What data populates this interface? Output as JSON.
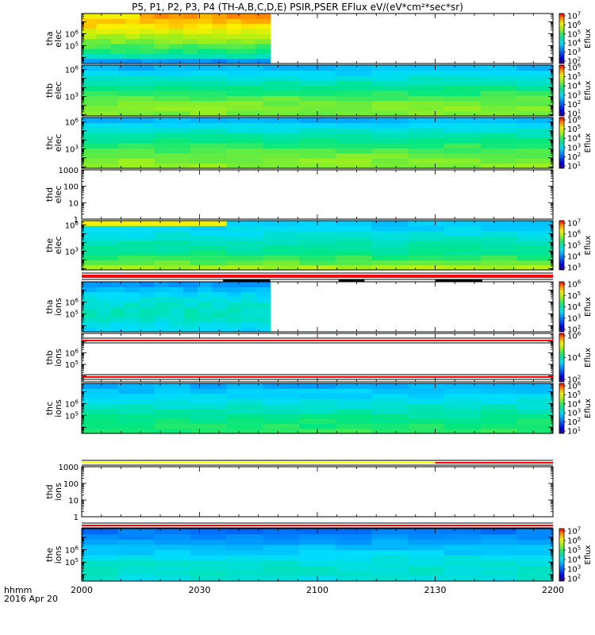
{
  "title": "P5, P1, P2, P3, P4 (TH-A,B,C,D,E) PSIR,PSER EFlux eV/(eV*cm²*sec*sr)",
  "footer": {
    "line1": "hhmm",
    "line2": "2016 Apr 20"
  },
  "colorbar_label": "Eflux",
  "chart_data": {
    "type": "heatmap",
    "title": "P5, P1, P2, P3, P4 (TH-A,B,C,D,E) PSIR,PSER EFlux eV/(eV*cm²*sec*sr)",
    "x_ticks": [
      "2000",
      "2030",
      "2100",
      "2130",
      "2200"
    ],
    "x_range": [
      "20:00",
      "22:00"
    ],
    "xlabel": "hhmm",
    "date": "2016 Apr 20",
    "panels": [
      {
        "label": [
          "tha",
          "elec"
        ],
        "yscale": "log",
        "ylim": [
          3000,
          50000000
        ],
        "yticks": [
          {
            "exp": 5,
            "label": "10^5"
          },
          {
            "exp": 6,
            "label": "10^6"
          }
        ],
        "data": "heatmap",
        "data_end": "20:48",
        "colorbar": [
          "10^2",
          "10^3",
          "10^4",
          "10^5",
          "10^6",
          "10^7"
        ],
        "profile": [
          3,
          4.2,
          4.7,
          5,
          5.3,
          5.6,
          6,
          6.4,
          6.6,
          6.8
        ],
        "low_yellow": true
      },
      {
        "label": [
          "thb",
          "elec"
        ],
        "yscale": "log",
        "ylim": [
          7,
          3000000
        ],
        "yticks": [
          {
            "exp": 3,
            "label": "10^3"
          },
          {
            "exp": 6,
            "label": "10^6"
          }
        ],
        "data": "heatmap",
        "colorbar": [
          "10^1",
          "10^2",
          "10^3",
          "10^4",
          "10^5",
          "10^6"
        ],
        "profile": [
          5.3,
          5.3,
          5.2,
          5.05,
          4.8,
          4.5,
          4.2,
          3.9,
          3.6,
          3.3
        ]
      },
      {
        "label": [
          "thc",
          "elec"
        ],
        "yscale": "log",
        "ylim": [
          7,
          3000000
        ],
        "yticks": [
          {
            "exp": 3,
            "label": "10^3"
          },
          {
            "exp": 6,
            "label": "10^6"
          }
        ],
        "data": "heatmap",
        "colorbar": [
          "10^1",
          "10^2",
          "10^3",
          "10^4",
          "10^5",
          "10^6"
        ],
        "profile": [
          5.35,
          5.3,
          5.2,
          5,
          4.8,
          4.5,
          4.2,
          3.9,
          3.6,
          3.3
        ]
      },
      {
        "label": [
          "thd",
          "elec"
        ],
        "yscale": "log",
        "ylim": [
          1,
          1000
        ],
        "yticks": [
          {
            "exp": 0,
            "label": "1"
          },
          {
            "exp": 1,
            "label": "10"
          },
          {
            "exp": 2,
            "label": "100"
          },
          {
            "exp": 3,
            "label": "1000"
          }
        ],
        "data": "empty"
      },
      {
        "label": [
          "the",
          "elec"
        ],
        "yscale": "log",
        "ylim": [
          7,
          3000000
        ],
        "yticks": [
          {
            "exp": 3,
            "label": "10^3"
          },
          {
            "exp": 6,
            "label": "10^6"
          }
        ],
        "data": "heatmap",
        "colorbar": [
          "10^3",
          "10^4",
          "10^5",
          "10^6",
          "10^7"
        ],
        "profile": [
          5.6,
          5.1,
          4.8,
          4.5,
          4.3,
          4.2,
          4,
          3.8,
          3.6,
          3.4
        ],
        "low_yellow": true
      },
      {
        "label": [
          "tha",
          "ions"
        ],
        "yscale": "log",
        "ylim": [
          3000,
          50000000
        ],
        "yticks": [
          {
            "exp": 5,
            "label": "10^5"
          },
          {
            "exp": 6,
            "label": "10^6"
          }
        ],
        "data": "heatmap",
        "data_end": "20:48",
        "colorbar": [
          "10^2",
          "10^3",
          "10^4",
          "10^5",
          "10^6"
        ],
        "profile": [
          3.6,
          3.8,
          4,
          4.1,
          4.1,
          4,
          3.8,
          3.6,
          3.3,
          3
        ]
      },
      {
        "label": [
          "thb",
          "ions"
        ],
        "yscale": "log",
        "ylim": [
          3000,
          50000000
        ],
        "yticks": [
          {
            "exp": 5,
            "label": "10^5"
          },
          {
            "exp": 6,
            "label": "10^6"
          }
        ],
        "data": "empty",
        "colorbar": [
          "10^2",
          "10^4",
          "10^6"
        ]
      },
      {
        "label": [
          "thc",
          "ions"
        ],
        "yscale": "log",
        "ylim": [
          3000,
          50000000
        ],
        "yticks": [
          {
            "exp": 5,
            "label": "10^5"
          },
          {
            "exp": 6,
            "label": "10^6"
          }
        ],
        "data": "heatmap",
        "colorbar": [
          "10^1",
          "10^2",
          "10^3",
          "10^4",
          "10^5",
          "10^6"
        ],
        "profile": [
          4.8,
          4.7,
          4.6,
          4.4,
          4.2,
          4,
          3.8,
          3.6,
          3.4,
          3.2
        ]
      },
      {
        "label": [
          "thd",
          "ions"
        ],
        "yscale": "log",
        "ylim": [
          1,
          1000
        ],
        "yticks": [
          {
            "exp": 0,
            "label": "1"
          },
          {
            "exp": 1,
            "label": "10"
          },
          {
            "exp": 2,
            "label": "100"
          },
          {
            "exp": 3,
            "label": "1000"
          }
        ],
        "data": "empty"
      },
      {
        "label": [
          "the",
          "ions"
        ],
        "yscale": "log",
        "ylim": [
          3000,
          50000000
        ],
        "yticks": [
          {
            "exp": 5,
            "label": "10^5"
          },
          {
            "exp": 6,
            "label": "10^6"
          }
        ],
        "data": "heatmap",
        "colorbar": [
          "10^2",
          "10^3",
          "10^4",
          "10^5",
          "10^6",
          "10^7"
        ],
        "profile": [
          3.9,
          4,
          4,
          3.9,
          3.7,
          3.5,
          3.3,
          3.1,
          2.9,
          2.7
        ]
      }
    ],
    "status_bars": [
      {
        "after_panel": 4,
        "segments": [
          {
            "color": "#ff0000",
            "from": 0,
            "to": 1
          }
        ]
      },
      {
        "after_panel": 5,
        "segments": [
          {
            "color": "#ff0000",
            "from": 0,
            "to": 1
          }
        ]
      },
      {
        "after_panel": 6,
        "segments": [
          {
            "color": "#ff0000",
            "from": 0,
            "to": 1
          }
        ]
      },
      {
        "after_panel": 7,
        "segments": [
          {
            "color": "#ffff00",
            "from": 0,
            "to": 0.75
          },
          {
            "color": "#ff0000",
            "from": 0.75,
            "to": 1
          }
        ]
      },
      {
        "after_panel": 8,
        "segments": [
          {
            "color": "#ff0000",
            "from": 0,
            "to": 1
          }
        ]
      }
    ],
    "black_marks": [
      {
        "after_panel": 4,
        "from": 0.3,
        "to": 0.4
      },
      {
        "after_panel": 4,
        "from": 0.545,
        "to": 0.6
      },
      {
        "after_panel": 4,
        "from": 0.75,
        "to": 0.85
      }
    ]
  }
}
